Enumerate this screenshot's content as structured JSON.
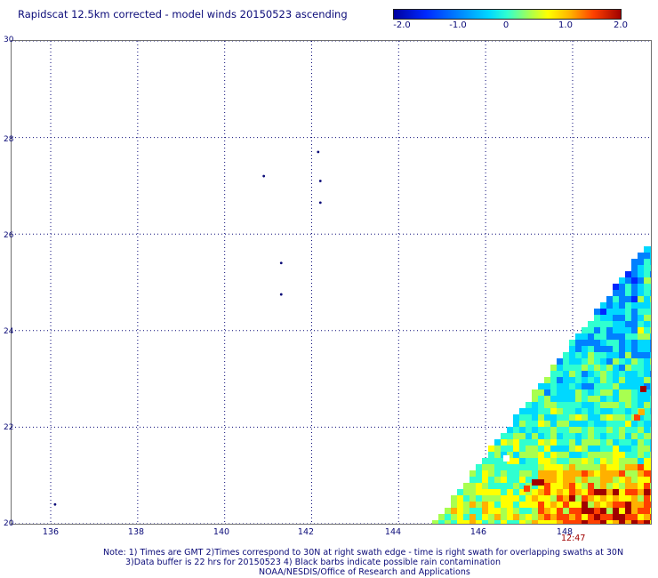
{
  "title": "Rapidscat 12.5km corrected - model winds 20150523 ascending",
  "colorbar": {
    "labels": [
      "-2.0",
      "-1.0",
      "0",
      "1.0",
      "2.0"
    ],
    "colors": [
      "#0000a0",
      "#0028ff",
      "#0080ff",
      "#00d8ff",
      "#30ffd0",
      "#a8ff50",
      "#ffff00",
      "#ffb000",
      "#ff4000",
      "#a00000"
    ]
  },
  "axes": {
    "lat_labels": [
      "30",
      "28",
      "26",
      "24",
      "22",
      "20"
    ],
    "lon_labels": [
      "136",
      "138",
      "140",
      "142",
      "144",
      "146",
      "148"
    ],
    "lat_range": [
      20,
      30
    ],
    "lon_range": [
      135.1,
      149.8
    ]
  },
  "timestamp": "12:47",
  "notes": [
    "Note: 1) Times are GMT 2)Times correspond to 30N at right swath edge - time is right swath for overlapping swaths at 30N",
    "3)Data buffer is 22 hrs for 20150523 4) Black barbs indicate possible rain contamination",
    "NOAA/NESDIS/Office of Research and Applications"
  ],
  "islands": [
    {
      "lon": 142.15,
      "lat": 27.7
    },
    {
      "lon": 142.2,
      "lat": 27.1
    },
    {
      "lon": 142.2,
      "lat": 26.65
    },
    {
      "lon": 140.9,
      "lat": 27.2
    },
    {
      "lon": 141.3,
      "lat": 25.4
    },
    {
      "lon": 141.3,
      "lat": 24.75
    },
    {
      "lon": 136.1,
      "lat": 20.4
    }
  ]
}
